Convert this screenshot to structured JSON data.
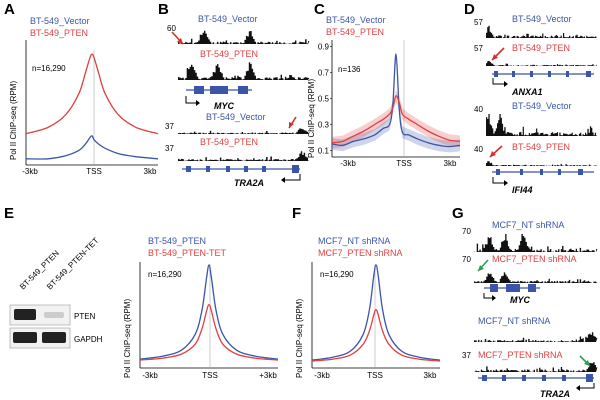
{
  "colors": {
    "blue": "#3b55a8",
    "red": "#e04040",
    "green": "#2e9e4f",
    "black": "#111111",
    "grey": "#aaaaaa",
    "band": "#222222"
  },
  "panels": {
    "A": {
      "letter": "A",
      "legend": [
        "BT-549_Vector",
        "BT-549_PTEN"
      ],
      "n": "n=16,290"
    },
    "B": {
      "letter": "B",
      "track1": {
        "label": "BT-549_Vector",
        "scale": "60"
      },
      "track2": {
        "label": "BT-549_PTEN",
        "scale": ""
      },
      "gene1": "MYC",
      "track3": {
        "label": "BT-549_Vector",
        "scale": "37"
      },
      "track4": {
        "label": "BT-549_PTEN",
        "scale": "37"
      },
      "gene2": "TRA2A"
    },
    "C": {
      "letter": "C",
      "legend": [
        "BT-549_Vector",
        "BT-549_PTEN"
      ],
      "n": "n=136"
    },
    "D": {
      "letter": "D",
      "track1": {
        "label": "BT-549_Vector",
        "scale": "57"
      },
      "track2": {
        "label": "BT-549_PTEN",
        "scale": "57"
      },
      "gene1": "ANXA1",
      "track3": {
        "label": "BT-549_Vector",
        "scale": "40"
      },
      "track4": {
        "label": "BT-549_PTEN",
        "scale": "40"
      },
      "gene2": "IFI44"
    },
    "E": {
      "letter": "E",
      "legend": [
        "BT-549_PTEN",
        "BT-549_PTEN-TET"
      ],
      "n": "n=16,290",
      "blot_lanes": [
        "BT-549_PTEN",
        "BT-549_PTEN-TET"
      ],
      "blot_bands": [
        "PTEN",
        "GAPDH"
      ]
    },
    "F": {
      "letter": "F",
      "legend": [
        "MCF7_NT shRNA",
        "MCF7_PTEN shRNA"
      ],
      "n": "n=16,290"
    },
    "G": {
      "letter": "G",
      "track1": {
        "label": "MCF7_NT shRNA",
        "scale": "70"
      },
      "track2": {
        "label": "MCF7_PTEN shRNA",
        "scale": "70"
      },
      "gene1": "MYC",
      "track3": {
        "label": "MCF7_NT shRNA",
        "scale": ""
      },
      "track4": {
        "label": "MCF7_PTEN shRNA",
        "scale": "37"
      },
      "gene2": "TRA2A"
    }
  },
  "chart_data": [
    {
      "panel": "A",
      "type": "line",
      "title": "",
      "ylabel": "Pol II ChIP-seq (RPM)",
      "categories": [
        "-3kb",
        "TSS",
        "3kb"
      ],
      "series": [
        {
          "name": "BT-549_Vector",
          "color": "blue",
          "x": [
            -3000,
            -2000,
            -1200,
            -600,
            -300,
            -100,
            0,
            100,
            300,
            600,
            1200,
            2000,
            3000
          ],
          "values": [
            0.0,
            0.0,
            0.03,
            0.08,
            0.14,
            0.2,
            0.22,
            0.18,
            0.14,
            0.1,
            0.05,
            0.02,
            0.0
          ]
        },
        {
          "name": "BT-549_PTEN",
          "color": "red",
          "x": [
            -3000,
            -2000,
            -1200,
            -600,
            -300,
            -100,
            0,
            100,
            300,
            600,
            1200,
            2000,
            3000
          ],
          "values": [
            0.24,
            0.3,
            0.42,
            0.62,
            0.82,
            0.96,
            1.0,
            0.96,
            0.82,
            0.62,
            0.42,
            0.3,
            0.24
          ]
        }
      ]
    },
    {
      "panel": "C",
      "type": "line",
      "ylabel": "Pol II ChIP-seq (RPM)",
      "categories": [
        "-3kb",
        "TSS",
        "3kb"
      ],
      "yticks": [
        "0.1",
        "0.3",
        "0.5",
        "0.7",
        "0.9"
      ],
      "ylim": [
        0.05,
        0.95
      ],
      "series": [
        {
          "name": "BT-549_Vector",
          "color": "blue",
          "x": [
            -3000,
            -2500,
            -2000,
            -1500,
            -1000,
            -600,
            -300,
            -150,
            0,
            150,
            300,
            600,
            1000,
            1500,
            2000,
            2500,
            3000
          ],
          "values": [
            0.15,
            0.14,
            0.17,
            0.19,
            0.22,
            0.27,
            0.3,
            0.45,
            0.84,
            0.42,
            0.24,
            0.22,
            0.19,
            0.16,
            0.14,
            0.13,
            0.14
          ]
        },
        {
          "name": "BT-549_PTEN",
          "color": "red",
          "x": [
            -3000,
            -2500,
            -2000,
            -1500,
            -1000,
            -600,
            -300,
            -150,
            0,
            150,
            300,
            600,
            1000,
            1500,
            2000,
            2500,
            3000
          ],
          "values": [
            0.16,
            0.17,
            0.21,
            0.25,
            0.3,
            0.34,
            0.38,
            0.43,
            0.52,
            0.47,
            0.38,
            0.34,
            0.3,
            0.25,
            0.21,
            0.18,
            0.17
          ]
        }
      ]
    },
    {
      "panel": "E",
      "type": "line",
      "ylabel": "Pol II ChIP-seq (RPM)",
      "categories": [
        "-3kb",
        "TSS",
        "+3kb"
      ],
      "series": [
        {
          "name": "BT-549_PTEN",
          "color": "blue",
          "x": [
            -3000,
            -2000,
            -1200,
            -600,
            -300,
            -100,
            0,
            100,
            300,
            600,
            1200,
            2000,
            3000
          ],
          "values": [
            0.05,
            0.08,
            0.14,
            0.3,
            0.55,
            0.88,
            1.0,
            0.88,
            0.55,
            0.3,
            0.14,
            0.08,
            0.05
          ]
        },
        {
          "name": "BT-549_PTEN-TET",
          "color": "red",
          "x": [
            -3000,
            -2000,
            -1200,
            -600,
            -300,
            -100,
            0,
            100,
            300,
            600,
            1200,
            2000,
            3000
          ],
          "values": [
            0.04,
            0.06,
            0.1,
            0.2,
            0.36,
            0.54,
            0.6,
            0.54,
            0.36,
            0.2,
            0.1,
            0.06,
            0.04
          ]
        }
      ]
    },
    {
      "panel": "F",
      "type": "line",
      "ylabel": "Pol II ChIP-seq (RPM)",
      "categories": [
        "-3kb",
        "TSS",
        "3kb"
      ],
      "series": [
        {
          "name": "MCF7_NT shRNA",
          "color": "blue",
          "x": [
            -3000,
            -2000,
            -1200,
            -600,
            -300,
            -100,
            0,
            100,
            300,
            600,
            1200,
            2000,
            3000
          ],
          "values": [
            0.04,
            0.07,
            0.13,
            0.3,
            0.56,
            0.9,
            1.0,
            0.9,
            0.56,
            0.3,
            0.13,
            0.07,
            0.04
          ]
        },
        {
          "name": "MCF7_PTEN shRNA",
          "color": "red",
          "x": [
            -3000,
            -2000,
            -1200,
            -600,
            -300,
            -100,
            0,
            100,
            300,
            600,
            1200,
            2000,
            3000
          ],
          "values": [
            0.03,
            0.05,
            0.09,
            0.2,
            0.34,
            0.5,
            0.55,
            0.5,
            0.34,
            0.2,
            0.09,
            0.05,
            0.03
          ]
        }
      ]
    }
  ]
}
